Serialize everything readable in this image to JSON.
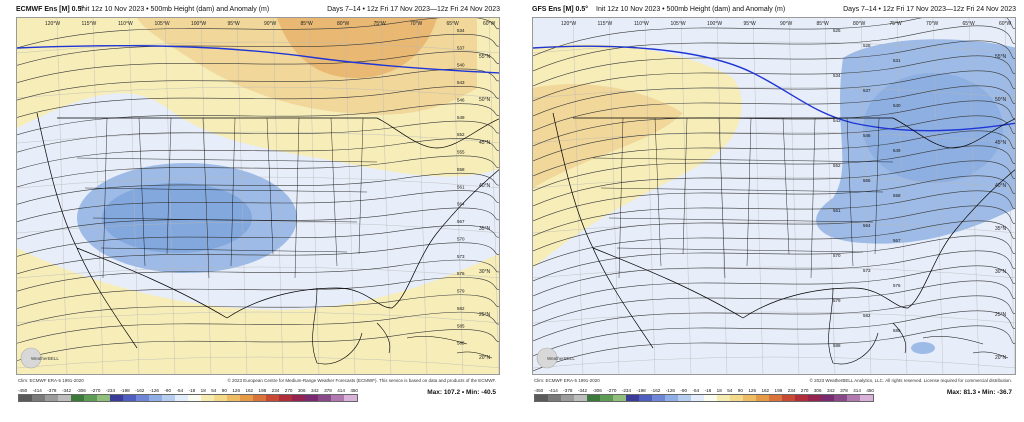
{
  "panels": [
    {
      "id": "ecmwf",
      "model": "ECMWF Ens [M] 0.5°",
      "init": "Init 12z 10 Nov 2023 • 500mb Height (dam) and Anomaly (m)",
      "days": "Days 7–14 • 12z Fri 17 Nov 2023—12z Fri 24 Nov 2023",
      "clim": "Clim: ECMWF ERA-5 1991-2020",
      "credit": "© 2023 European Centre for Medium-Range Weather Forecasts (ECMWF). This service is based on data and products of the ECMWF.",
      "max_label": "Max:",
      "max_value": "107.2",
      "min_label": "Min:",
      "min_value": "-40.5",
      "lon_labels": [
        "120°W",
        "115°W",
        "110°W",
        "105°W",
        "100°W",
        "95°W",
        "90°W",
        "85°W",
        "80°W",
        "75°W",
        "70°W",
        "65°W",
        "60°W"
      ],
      "lat_labels": [
        "55°N",
        "50°N",
        "45°N",
        "40°N",
        "35°N",
        "30°N",
        "25°N",
        "20°N"
      ],
      "contour_labels": [
        "534",
        "537",
        "540",
        "543",
        "546",
        "549",
        "552",
        "555",
        "558",
        "561",
        "564",
        "567",
        "570",
        "573",
        "576",
        "579",
        "582",
        "585",
        "588"
      ],
      "logo_text": "WeatherBELL"
    },
    {
      "id": "gfs",
      "model": "GFS Ens [M] 0.5°",
      "init": "Init 12z 10 Nov 2023 • 500mb Height (dam) and Anomaly (m)",
      "days": "Days 7–14 • 12z Fri 17 Nov 2023—12z Fri 24 Nov 2023",
      "clim": "Clim: ECMWF ERA-5 1991-2020",
      "credit": "© 2023 WeatherBELL Analytics, LLC. All rights reserved. License required for commercial distribution.",
      "max_label": "Max:",
      "max_value": "81.3",
      "min_label": "Min:",
      "min_value": "-36.7",
      "lon_labels": [
        "120°W",
        "115°W",
        "110°W",
        "105°W",
        "100°W",
        "95°W",
        "90°W",
        "85°W",
        "80°W",
        "75°W",
        "70°W",
        "65°W",
        "60°W"
      ],
      "lat_labels": [
        "55°N",
        "50°N",
        "45°N",
        "40°N",
        "35°N",
        "30°N",
        "25°N",
        "20°N"
      ],
      "contour_labels": [
        "525",
        "528",
        "531",
        "534",
        "537",
        "540",
        "543",
        "546",
        "549",
        "552",
        "555",
        "558",
        "561",
        "564",
        "567",
        "570",
        "573",
        "576",
        "579",
        "582",
        "585",
        "588"
      ],
      "logo_text": "WeatherBELL"
    }
  ],
  "colorbar": {
    "ticks": [
      "-450",
      "-414",
      "-378",
      "-342",
      "-306",
      "-270",
      "-234",
      "-198",
      "-162",
      "-126",
      "-90",
      "-54",
      "-18",
      "18",
      "54",
      "90",
      "126",
      "162",
      "198",
      "234",
      "270",
      "306",
      "342",
      "378",
      "414",
      "450"
    ],
    "colors": [
      "#5a5a5a",
      "#7a7a7a",
      "#9c9c9c",
      "#bdbdbd",
      "#3b7a3b",
      "#5e9c55",
      "#8fbf7a",
      "#3b3b9a",
      "#4f5fbf",
      "#6f86d6",
      "#8faee6",
      "#b6cdf0",
      "#e3ecfa",
      "#fafcf0",
      "#f6ecb2",
      "#f3d98a",
      "#eebc62",
      "#e59a45",
      "#d9733a",
      "#c84a34",
      "#b02e3a",
      "#95234f",
      "#7a2a6e",
      "#8a4a8a",
      "#b07ab0",
      "#d8b2d8"
    ]
  },
  "palette": {
    "positive_light": "#f6edb8",
    "positive_mid": "#f1d79a",
    "positive_strong": "#e9b873",
    "negative_light": "#e7edf9",
    "negative_mid": "#9dbbe6",
    "negative_strong": "#6f9bd9",
    "contour": "#3a3a3a",
    "highlight_contour": "#1f35d6",
    "land_line": "#000000"
  }
}
